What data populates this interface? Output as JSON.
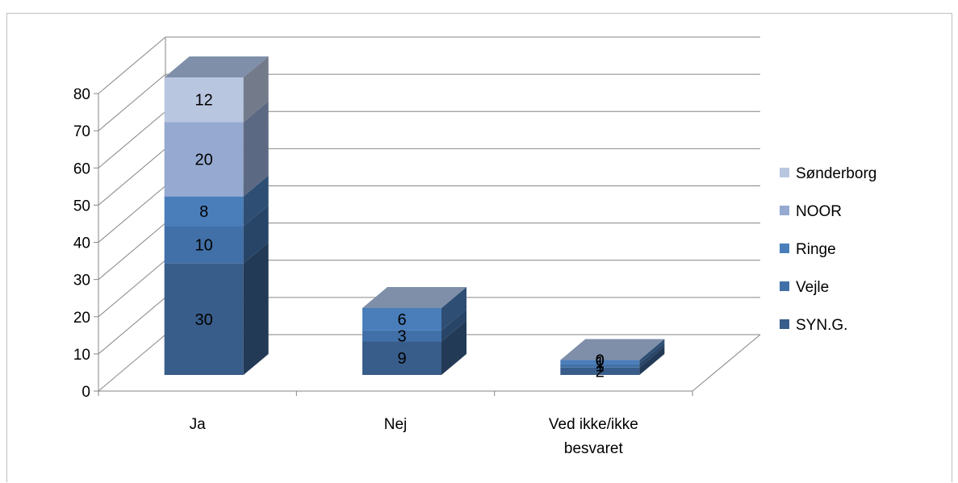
{
  "chart_data": {
    "type": "bar",
    "stacked": true,
    "three_d": true,
    "title": "",
    "xlabel": "",
    "ylabel": "",
    "ylim": [
      0,
      80
    ],
    "yticks": [
      "0",
      "10",
      "20",
      "30",
      "40",
      "50",
      "60",
      "70",
      "80"
    ],
    "grid": true,
    "legend_position": "right",
    "categories": [
      {
        "label_lines": [
          "Ja"
        ]
      },
      {
        "label_lines": [
          "Nej"
        ]
      },
      {
        "label_lines": [
          "Ved ikke/ikke",
          "besvaret"
        ]
      }
    ],
    "series": [
      {
        "name": "SYN.G.",
        "color": "#385d8a",
        "values": [
          30,
          9,
          2
        ],
        "labels": [
          "30",
          "9",
          "2"
        ]
      },
      {
        "name": "Vejle",
        "color": "#4170a8",
        "values": [
          10,
          3,
          1
        ],
        "labels": [
          "10",
          "3",
          "1"
        ]
      },
      {
        "name": "Ringe",
        "color": "#4a7ebb",
        "values": [
          8,
          6,
          1
        ],
        "labels": [
          "8",
          "6",
          "1"
        ]
      },
      {
        "name": "NOOR",
        "color": "#95a9d1",
        "values": [
          20,
          0,
          0
        ],
        "labels": [
          "20",
          "",
          "0"
        ]
      },
      {
        "name": "Sønderborg",
        "color": "#b9c6e0",
        "values": [
          12,
          0,
          0
        ],
        "labels": [
          "12",
          "",
          "0"
        ]
      }
    ]
  }
}
